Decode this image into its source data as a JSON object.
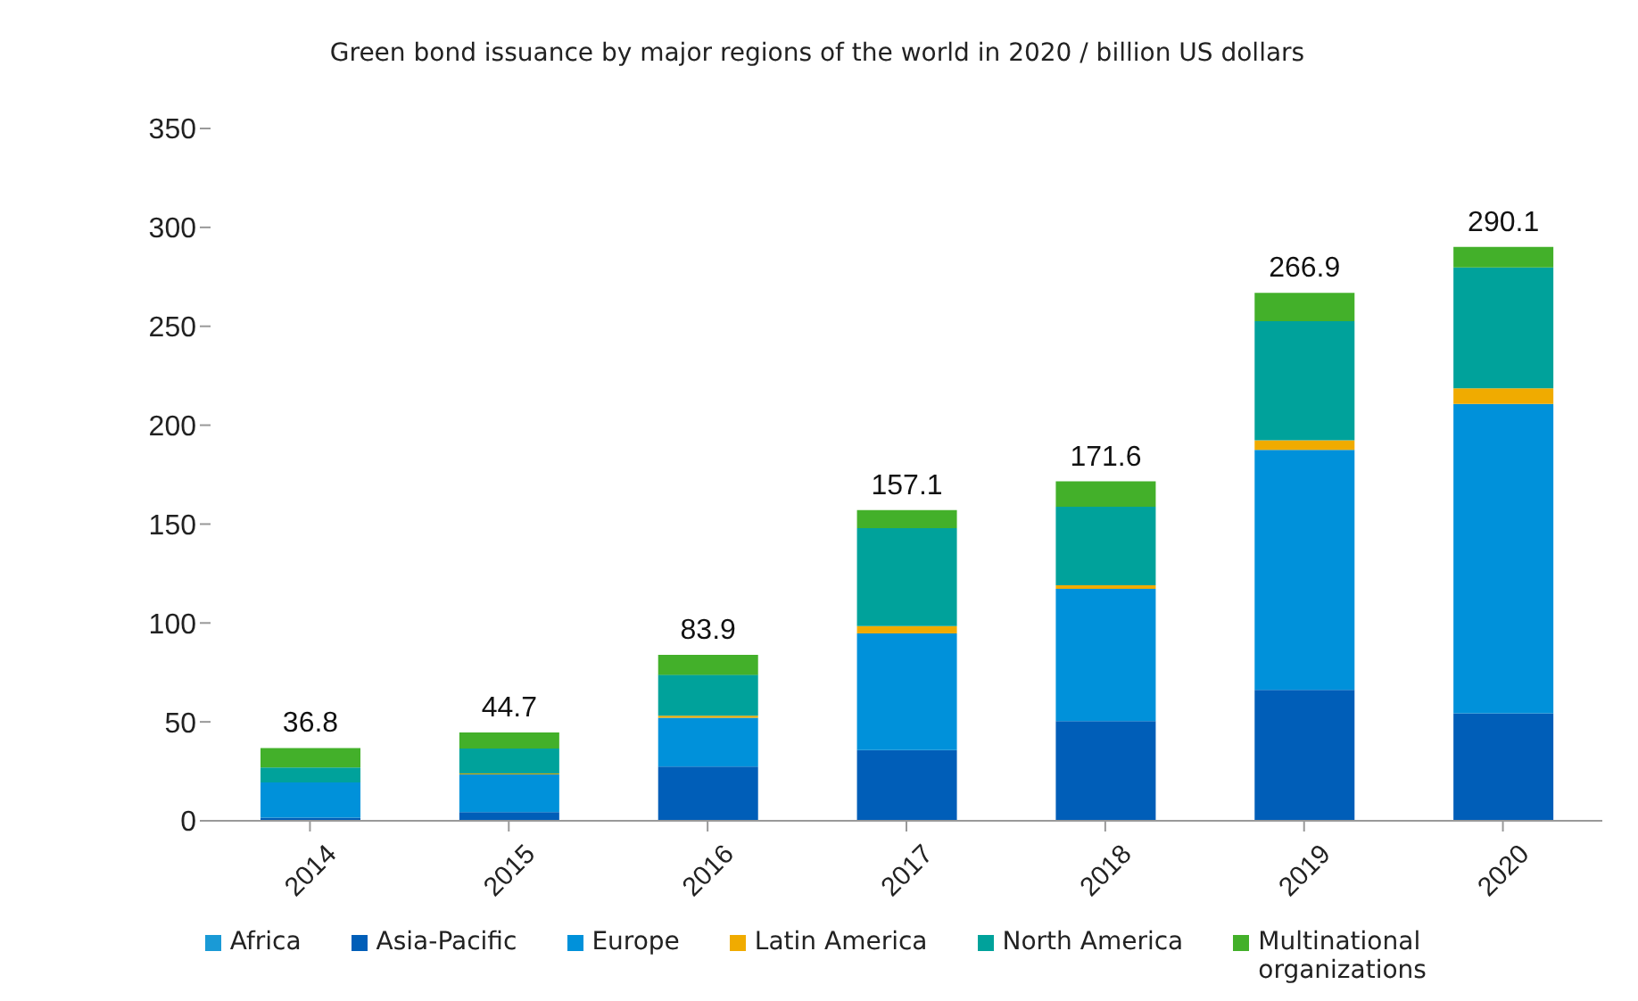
{
  "chart_data": {
    "type": "bar",
    "title": "Green bond issuance by major regions of the world in 2020 / billion US dollars",
    "categories": [
      "2014",
      "2015",
      "2016",
      "2017",
      "2018",
      "2019",
      "2020"
    ],
    "stacked": true,
    "series": [
      {
        "name": "Africa",
        "color": "#1a9ad6",
        "values": [
          null,
          null,
          null,
          null,
          null,
          null,
          null
        ]
      },
      {
        "name": "Asia-Pacific",
        "color": "#005eb8",
        "values": [
          1.6,
          4.4,
          27.4,
          35.8,
          50.4,
          66.2,
          54.3
        ]
      },
      {
        "name": "Europe",
        "color": "#0091da",
        "values": [
          17.8,
          19.0,
          24.7,
          58.9,
          66.9,
          121.3,
          156.4
        ]
      },
      {
        "name": "Latin America",
        "color": "#f0ab00",
        "values": [
          0,
          0.5,
          1.0,
          3.7,
          1.8,
          4.9,
          7.9
        ]
      },
      {
        "name": "North America",
        "color": "#00a29b",
        "values": [
          7.6,
          12.6,
          20.7,
          49.5,
          39.7,
          60.2,
          61.1
        ]
      },
      {
        "name": "Multinational organizations",
        "color": "#43b02a",
        "values": [
          9.8,
          8.2,
          10.1,
          9.2,
          12.8,
          14.3,
          10.4
        ]
      }
    ],
    "totals": [
      "36.8",
      "44.7",
      "83.9",
      "157.1",
      "171.6",
      "266.9",
      "290.1"
    ],
    "ylim": [
      0,
      350
    ],
    "yticks": [
      0,
      50,
      100,
      150,
      200,
      250,
      300,
      350
    ],
    "grid": false,
    "legend": "bottom"
  }
}
